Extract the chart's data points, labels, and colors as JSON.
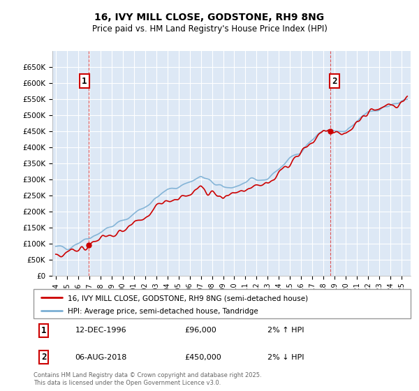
{
  "title": "16, IVY MILL CLOSE, GODSTONE, RH9 8NG",
  "subtitle": "Price paid vs. HM Land Registry's House Price Index (HPI)",
  "legend_line1": "16, IVY MILL CLOSE, GODSTONE, RH9 8NG (semi-detached house)",
  "legend_line2": "HPI: Average price, semi-detached house, Tandridge",
  "annotation1_label": "1",
  "annotation1_date": "12-DEC-1996",
  "annotation1_price": "£96,000",
  "annotation1_hpi": "2% ↑ HPI",
  "annotation2_label": "2",
  "annotation2_date": "06-AUG-2018",
  "annotation2_price": "£450,000",
  "annotation2_hpi": "2% ↓ HPI",
  "footer": "Contains HM Land Registry data © Crown copyright and database right 2025.\nThis data is licensed under the Open Government Licence v3.0.",
  "price_color": "#cc0000",
  "hpi_color": "#7bafd4",
  "dashed_line_color": "#dd4444",
  "background_color": "#ffffff",
  "plot_bg_color": "#dde8f5",
  "grid_color": "#ffffff",
  "ylim": [
    0,
    700000
  ],
  "yticks": [
    0,
    50000,
    100000,
    150000,
    200000,
    250000,
    300000,
    350000,
    400000,
    450000,
    500000,
    550000,
    600000,
    650000
  ],
  "xlim_start": 1993.7,
  "xlim_end": 2025.8,
  "sale1_year": 1996.95,
  "sale1_price": 96000,
  "sale2_year": 2018.58,
  "sale2_price": 450000
}
